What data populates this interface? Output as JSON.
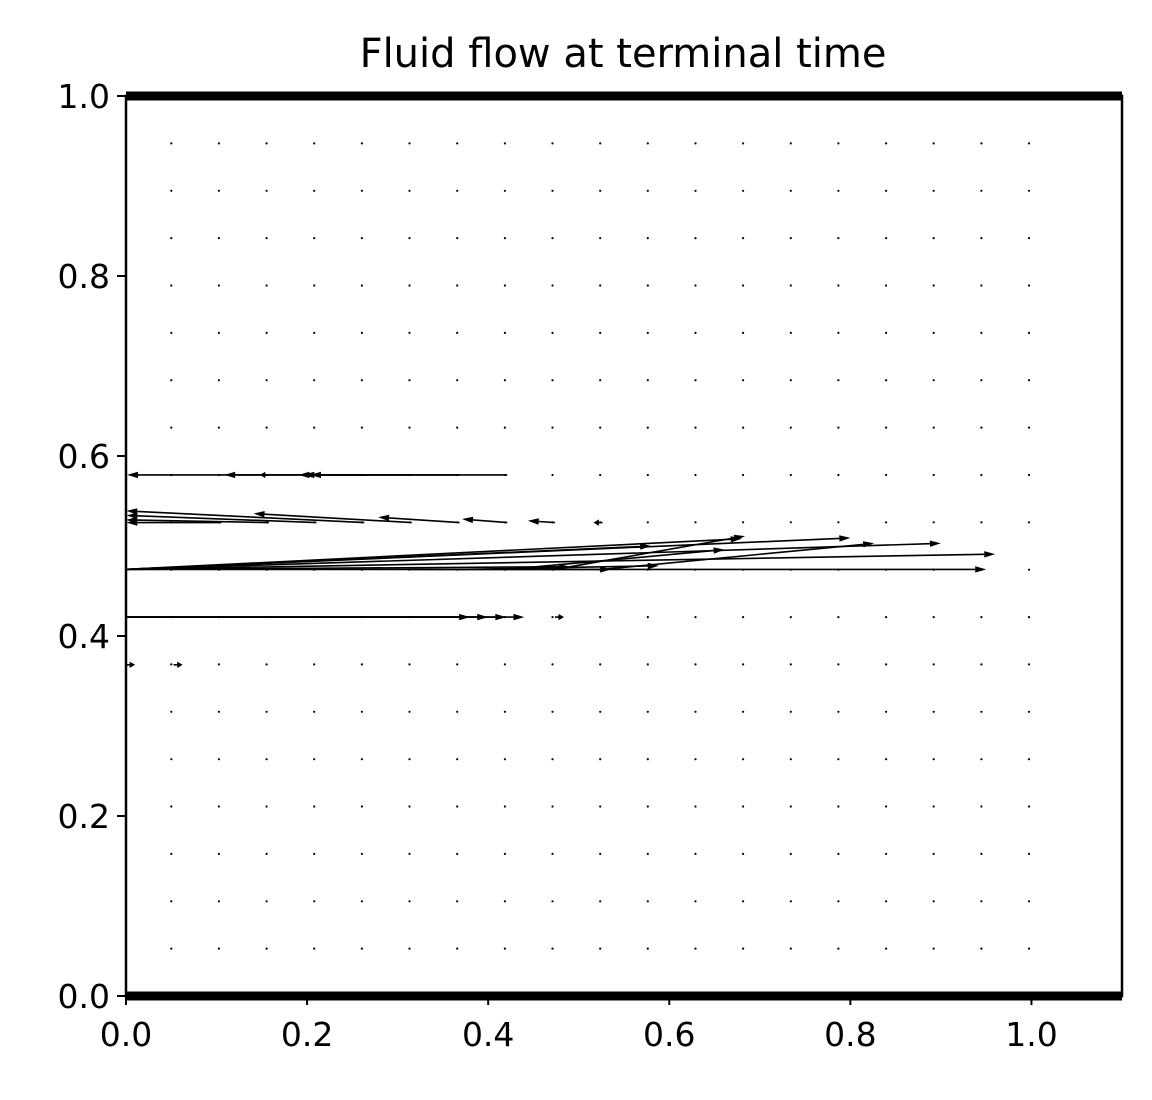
{
  "chart_data": {
    "type": "quiver",
    "title": "Fluid flow at terminal time",
    "xlabel": "",
    "ylabel": "",
    "xlim": [
      0.0,
      1.1
    ],
    "ylim": [
      0.0,
      1.0
    ],
    "xticks": [
      {
        "value": 0.0,
        "label": "0.0"
      },
      {
        "value": 0.2,
        "label": "0.2"
      },
      {
        "value": 0.4,
        "label": "0.4"
      },
      {
        "value": 0.6,
        "label": "0.6"
      },
      {
        "value": 0.8,
        "label": "0.8"
      },
      {
        "value": 1.0,
        "label": "1.0"
      }
    ],
    "yticks": [
      {
        "value": 0.0,
        "label": "0.0"
      },
      {
        "value": 0.2,
        "label": "0.2"
      },
      {
        "value": 0.4,
        "label": "0.4"
      },
      {
        "value": 0.6,
        "label": "0.6"
      },
      {
        "value": 0.8,
        "label": "0.8"
      },
      {
        "value": 1.0,
        "label": "1.0"
      }
    ],
    "walls": [
      0.0,
      1.0
    ],
    "grid": false,
    "legend": "none",
    "dot_grid": {
      "x_start": 0.05,
      "x_step": 0.05263,
      "nx": 19,
      "y_start": 0.05263,
      "y_step": 0.05263,
      "ny": 18
    },
    "arrows": [
      {
        "x": 0.4211,
        "y": 0.579,
        "u": -0.42,
        "v": 0.0
      },
      {
        "x": 0.3684,
        "y": 0.579,
        "u": -0.26,
        "v": 0.0
      },
      {
        "x": 0.3158,
        "y": 0.579,
        "u": -0.12,
        "v": 0.0
      },
      {
        "x": 0.2632,
        "y": 0.579,
        "u": -0.06,
        "v": 0.0
      },
      {
        "x": 0.2105,
        "y": 0.579,
        "u": -0.02,
        "v": 0.0
      },
      {
        "x": 0.1579,
        "y": 0.579,
        "u": -0.01,
        "v": 0.0
      },
      {
        "x": 0.1053,
        "y": 0.526,
        "u": -0.105,
        "v": 0.0
      },
      {
        "x": 0.1579,
        "y": 0.526,
        "u": -0.158,
        "v": 0.003
      },
      {
        "x": 0.2105,
        "y": 0.526,
        "u": -0.21,
        "v": 0.008
      },
      {
        "x": 0.2632,
        "y": 0.526,
        "u": -0.263,
        "v": 0.013
      },
      {
        "x": 0.3158,
        "y": 0.526,
        "u": -0.175,
        "v": 0.01
      },
      {
        "x": 0.3684,
        "y": 0.526,
        "u": -0.09,
        "v": 0.006
      },
      {
        "x": 0.4211,
        "y": 0.526,
        "u": -0.05,
        "v": 0.004
      },
      {
        "x": 0.4737,
        "y": 0.526,
        "u": -0.03,
        "v": 0.002
      },
      {
        "x": 0.5263,
        "y": 0.526,
        "u": -0.01,
        "v": 0.0
      },
      {
        "x": 0.3158,
        "y": 0.474,
        "u": 0.22,
        "v": 0.0
      },
      {
        "x": 0.3684,
        "y": 0.474,
        "u": 0.22,
        "v": 0.004
      },
      {
        "x": 0.4211,
        "y": 0.474,
        "u": 0.24,
        "v": 0.022
      },
      {
        "x": 0.4737,
        "y": 0.474,
        "u": 0.21,
        "v": 0.037
      },
      {
        "x": 0.5263,
        "y": 0.474,
        "u": 0.3,
        "v": 0.029
      },
      {
        "x": 0.0,
        "y": 0.474,
        "u": 0.95,
        "v": 0.0
      },
      {
        "x": 0.0,
        "y": 0.474,
        "u": 0.96,
        "v": 0.017
      },
      {
        "x": 0.0,
        "y": 0.474,
        "u": 0.9,
        "v": 0.029
      },
      {
        "x": 0.0,
        "y": 0.474,
        "u": 0.8,
        "v": 0.035
      },
      {
        "x": 0.0,
        "y": 0.474,
        "u": 0.68,
        "v": 0.034
      },
      {
        "x": 0.0,
        "y": 0.474,
        "u": 0.58,
        "v": 0.026
      },
      {
        "x": 0.0,
        "y": 0.474,
        "u": 0.49,
        "v": 0.003
      },
      {
        "x": 0.0,
        "y": 0.421,
        "u": 0.44,
        "v": 0.0
      },
      {
        "x": 0.0,
        "y": 0.421,
        "u": 0.42,
        "v": 0.0
      },
      {
        "x": 0.0,
        "y": 0.421,
        "u": 0.4,
        "v": 0.0
      },
      {
        "x": 0.0,
        "y": 0.421,
        "u": 0.38,
        "v": 0.0
      },
      {
        "x": 0.4737,
        "y": 0.421,
        "u": 0.01,
        "v": 0.0
      },
      {
        "x": 0.0,
        "y": 0.368,
        "u": 0.01,
        "v": 0.0
      },
      {
        "x": 0.0526,
        "y": 0.368,
        "u": 0.01,
        "v": 0.0
      }
    ]
  }
}
